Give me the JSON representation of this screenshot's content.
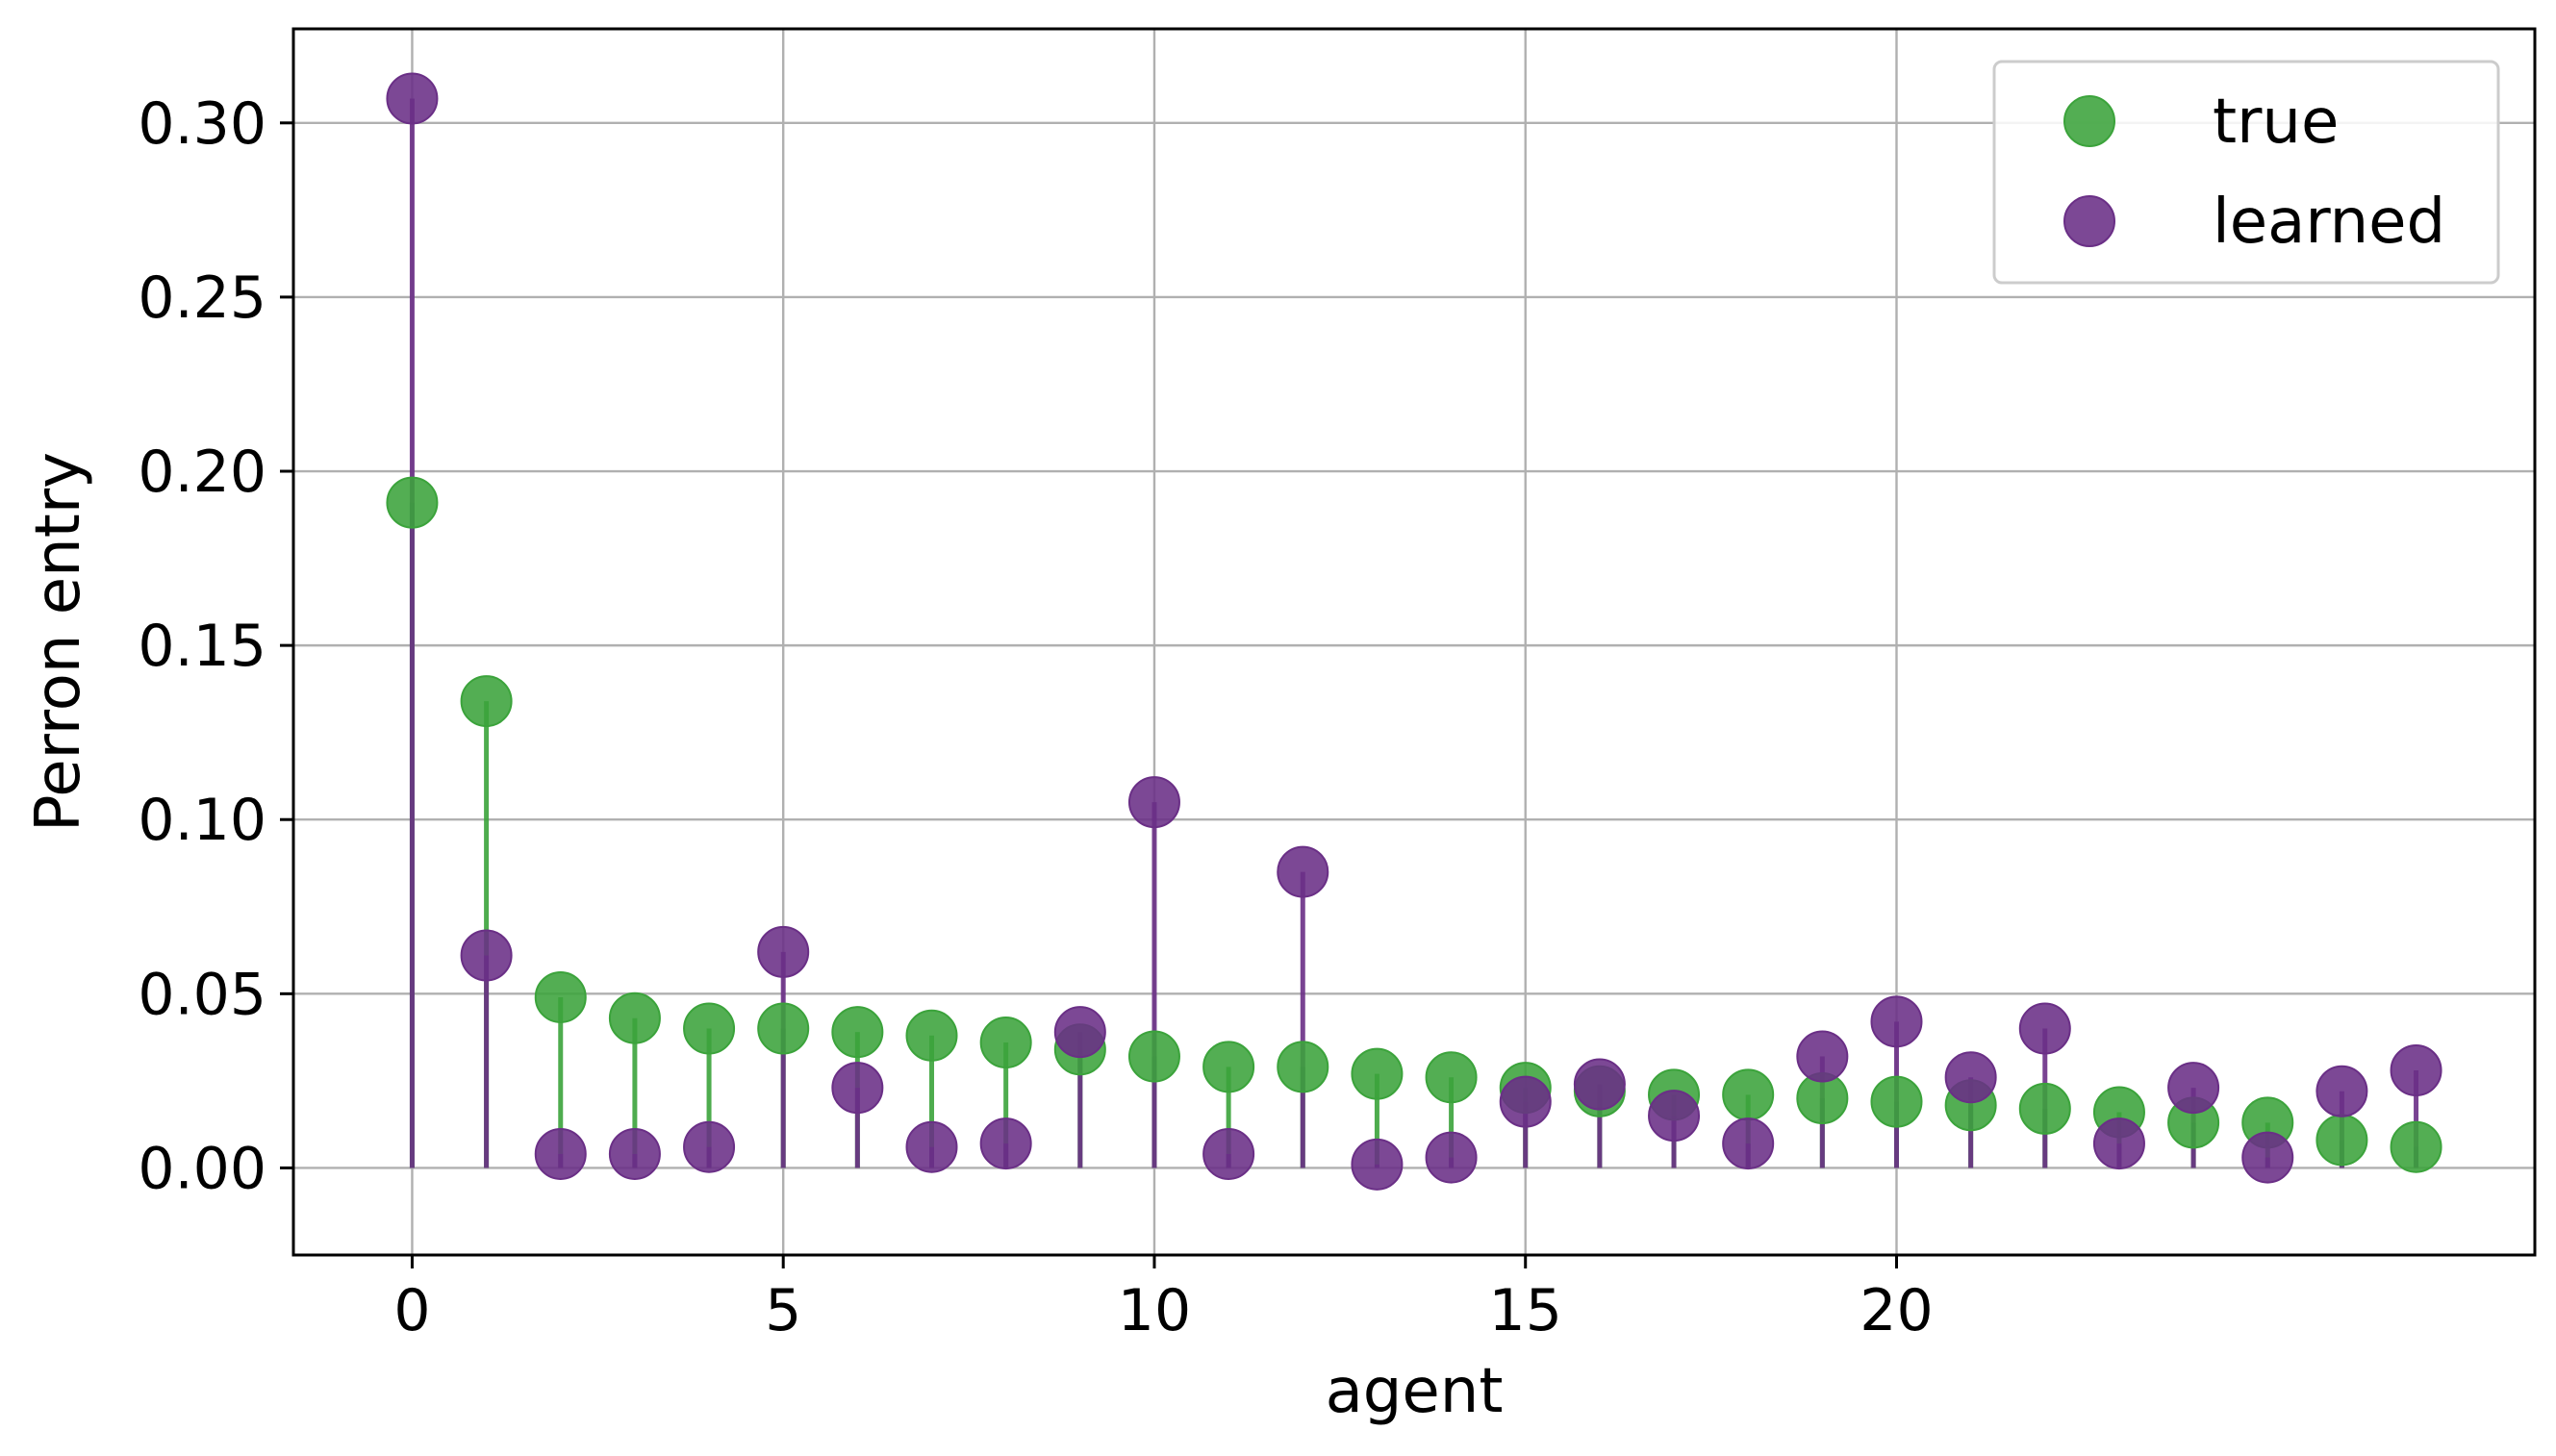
{
  "chart_data": {
    "type": "scatter",
    "xlabel": "agent",
    "ylabel": "Perron entry",
    "xlim": [
      -1.6,
      28.6
    ],
    "ylim": [
      -0.025,
      0.327
    ],
    "xticks": [
      0,
      5,
      10,
      15,
      20
    ],
    "xtick_labels": [
      "0",
      "5",
      "10",
      "15",
      "20"
    ],
    "yticks": [
      0.0,
      0.05,
      0.1,
      0.15,
      0.2,
      0.25,
      0.3
    ],
    "ytick_labels": [
      "0.00",
      "0.05",
      "0.10",
      "0.15",
      "0.20",
      "0.25",
      "0.30"
    ],
    "grid": true,
    "legend_position": "top-right",
    "x": [
      0,
      1,
      2,
      3,
      4,
      5,
      6,
      7,
      8,
      9,
      10,
      11,
      12,
      13,
      14,
      15,
      16,
      17,
      18,
      19,
      20,
      21,
      22,
      23,
      24,
      25,
      26,
      27
    ],
    "series": [
      {
        "name": "true",
        "color": "#3ba33b",
        "values": [
          0.191,
          0.134,
          0.049,
          0.043,
          0.04,
          0.04,
          0.039,
          0.038,
          0.036,
          0.034,
          0.032,
          0.029,
          0.029,
          0.027,
          0.026,
          0.023,
          0.022,
          0.021,
          0.021,
          0.02,
          0.019,
          0.018,
          0.017,
          0.016,
          0.013,
          0.013,
          0.008,
          0.006
        ]
      },
      {
        "name": "learned",
        "color": "#6a2f86",
        "values": [
          0.307,
          0.061,
          0.004,
          0.004,
          0.006,
          0.062,
          0.023,
          0.006,
          0.007,
          0.039,
          0.105,
          0.004,
          0.085,
          0.001,
          0.003,
          0.019,
          0.024,
          0.015,
          0.007,
          0.032,
          0.042,
          0.026,
          0.04,
          0.007,
          0.023,
          0.003,
          0.022,
          0.028
        ]
      }
    ]
  }
}
